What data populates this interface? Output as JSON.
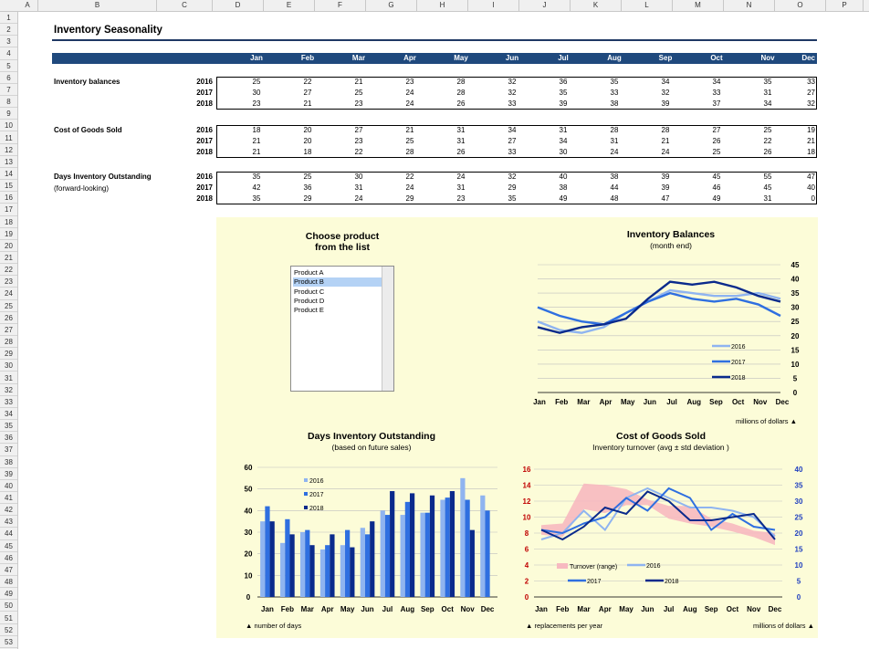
{
  "spreadsheet": {
    "columns": [
      "A",
      "B",
      "C",
      "D",
      "E",
      "F",
      "G",
      "H",
      "I",
      "J",
      "K",
      "L",
      "M",
      "N",
      "O",
      "P"
    ],
    "rows": [
      "1",
      "2",
      "3",
      "4",
      "5",
      "6",
      "7",
      "8",
      "9",
      "10",
      "11",
      "12",
      "13",
      "14",
      "15",
      "16",
      "17",
      "18",
      "19",
      "20",
      "21",
      "22",
      "23",
      "24",
      "25",
      "26",
      "27",
      "28",
      "29",
      "30",
      "31",
      "32",
      "33",
      "34",
      "35",
      "36",
      "37",
      "38",
      "39",
      "40",
      "41",
      "42",
      "43",
      "44",
      "45",
      "46",
      "47",
      "48",
      "49",
      "50",
      "51",
      "52",
      "53"
    ]
  },
  "title": "Inventory Seasonality",
  "months": [
    "Jan",
    "Feb",
    "Mar",
    "Apr",
    "May",
    "Jun",
    "Jul",
    "Aug",
    "Sep",
    "Oct",
    "Nov",
    "Dec"
  ],
  "years": [
    "2016",
    "2017",
    "2018"
  ],
  "sections": [
    {
      "label": "Inventory balances",
      "label2": "",
      "values": [
        [
          25,
          22,
          21,
          23,
          28,
          32,
          36,
          35,
          34,
          34,
          35,
          33
        ],
        [
          30,
          27,
          25,
          24,
          28,
          32,
          35,
          33,
          32,
          33,
          31,
          27
        ],
        [
          23,
          21,
          23,
          24,
          26,
          33,
          39,
          38,
          39,
          37,
          34,
          32
        ]
      ]
    },
    {
      "label": "Cost of Goods Sold",
      "label2": "",
      "values": [
        [
          18,
          20,
          27,
          21,
          31,
          34,
          31,
          28,
          28,
          27,
          25,
          19
        ],
        [
          21,
          20,
          23,
          25,
          31,
          27,
          34,
          31,
          21,
          26,
          22,
          21
        ],
        [
          21,
          18,
          22,
          28,
          26,
          33,
          30,
          24,
          24,
          25,
          26,
          18
        ]
      ]
    },
    {
      "label": "Days Inventory Outstanding",
      "label2": "(forward-looking)",
      "values": [
        [
          35,
          25,
          30,
          22,
          24,
          32,
          40,
          38,
          39,
          45,
          55,
          47
        ],
        [
          42,
          36,
          31,
          24,
          31,
          29,
          38,
          44,
          39,
          46,
          45,
          40
        ],
        [
          35,
          29,
          24,
          29,
          23,
          35,
          49,
          48,
          47,
          49,
          31,
          0
        ]
      ]
    }
  ],
  "product_list": {
    "title_line1": "Choose product",
    "title_line2": "from the list",
    "items": [
      "Product A",
      "Product B",
      "Product C",
      "Product D",
      "Product E"
    ],
    "selected": "Product B"
  },
  "colors": {
    "s2016": "#8fb4f0",
    "s2017": "#2f6fe0",
    "s2018": "#0a2a8c",
    "band": "#f7b9c0",
    "cogs_axis": "#c00000",
    "turn_axis": "#1f3fbf"
  },
  "chart_data": [
    {
      "type": "line",
      "title": "Inventory Balances",
      "subtitle": "(month end)",
      "categories": [
        "Jan",
        "Feb",
        "Mar",
        "Apr",
        "May",
        "Jun",
        "Jul",
        "Aug",
        "Sep",
        "Oct",
        "Nov",
        "Dec"
      ],
      "series": [
        {
          "name": "2016",
          "values": [
            25,
            22,
            21,
            23,
            28,
            32,
            36,
            35,
            34,
            34,
            35,
            33
          ]
        },
        {
          "name": "2017",
          "values": [
            30,
            27,
            25,
            24,
            28,
            32,
            35,
            33,
            32,
            33,
            31,
            27
          ]
        },
        {
          "name": "2018",
          "values": [
            23,
            21,
            23,
            24,
            26,
            33,
            39,
            38,
            39,
            37,
            34,
            32
          ]
        }
      ],
      "ylim": [
        0,
        45
      ],
      "yticks": [
        "0",
        "5",
        "10",
        "15",
        "20",
        "25",
        "30",
        "35",
        "40",
        "45"
      ],
      "y_axis_side": "right",
      "note": "millions of dollars ▲",
      "legend": "bottom-right",
      "grid": true
    },
    {
      "type": "bar",
      "title": "Days Inventory Outstanding",
      "subtitle": "(based on future sales)",
      "categories": [
        "Jan",
        "Feb",
        "Mar",
        "Apr",
        "May",
        "Jun",
        "Jul",
        "Aug",
        "Sep",
        "Oct",
        "Nov",
        "Dec"
      ],
      "series": [
        {
          "name": "2016",
          "values": [
            35,
            25,
            30,
            22,
            24,
            32,
            40,
            38,
            39,
            45,
            55,
            47
          ]
        },
        {
          "name": "2017",
          "values": [
            42,
            36,
            31,
            24,
            31,
            29,
            38,
            44,
            39,
            46,
            45,
            40
          ]
        },
        {
          "name": "2018",
          "values": [
            35,
            29,
            24,
            29,
            23,
            35,
            49,
            48,
            47,
            49,
            31,
            0
          ]
        }
      ],
      "ylim": [
        0,
        60
      ],
      "yticks": [
        "0",
        "10",
        "20",
        "30",
        "40",
        "50",
        "60"
      ],
      "note": "▲ number of days",
      "legend": "top-left",
      "grid": true
    },
    {
      "type": "line",
      "title": "Cost of Goods Sold",
      "subtitle": "Inventory turnover (avg ± std deviation )",
      "categories": [
        "Jan",
        "Feb",
        "Mar",
        "Apr",
        "May",
        "Jun",
        "Jul",
        "Aug",
        "Sep",
        "Oct",
        "Nov",
        "Dec"
      ],
      "series": [
        {
          "name": "2016",
          "values": [
            18,
            20,
            27,
            21,
            31,
            34,
            31,
            28,
            28,
            27,
            25,
            19
          ]
        },
        {
          "name": "2017",
          "values": [
            21,
            20,
            23,
            25,
            31,
            27,
            34,
            31,
            21,
            26,
            22,
            21
          ]
        },
        {
          "name": "2018",
          "values": [
            21,
            18,
            22,
            28,
            26,
            33,
            30,
            24,
            24,
            25,
            26,
            18
          ]
        }
      ],
      "band": {
        "name": "Turnover (range)",
        "upper": [
          9.0,
          9.2,
          14.2,
          14.0,
          13.5,
          12.2,
          11.4,
          11.4,
          9.8,
          9.2,
          8.3,
          8.0
        ],
        "lower": [
          7.8,
          7.5,
          11.0,
          10.5,
          11.5,
          11.5,
          9.8,
          9.2,
          8.8,
          8.2,
          7.5,
          6.5
        ]
      },
      "ylim_left": [
        0,
        16
      ],
      "yticks_left": [
        "0",
        "2",
        "4",
        "6",
        "8",
        "10",
        "12",
        "14",
        "16"
      ],
      "ylim_right": [
        0,
        40
      ],
      "yticks_right": [
        "0",
        "5",
        "10",
        "15",
        "20",
        "25",
        "30",
        "35",
        "40"
      ],
      "note_left": "▲ replacements per year",
      "note_right": "millions of dollars ▲",
      "legend": "bottom",
      "grid": true
    }
  ]
}
